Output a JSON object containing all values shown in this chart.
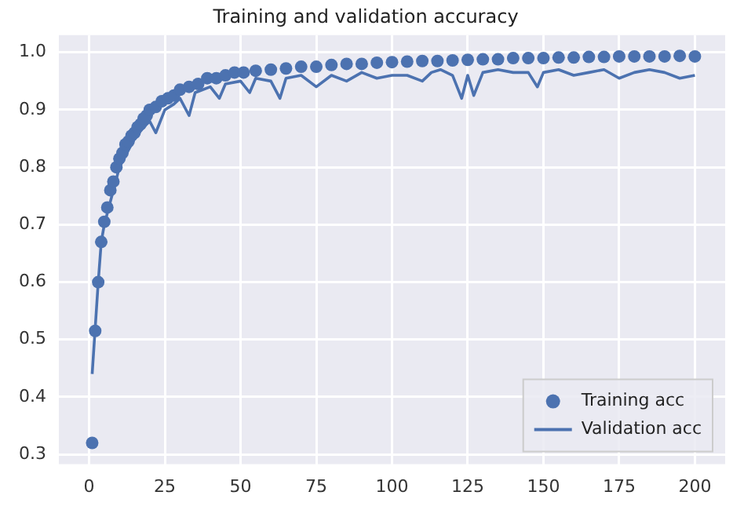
{
  "chart_data": {
    "type": "scatter",
    "title": "Training and validation accuracy",
    "xlim": [
      -10,
      210
    ],
    "ylim": [
      0.283,
      1.03
    ],
    "xticks": [
      0,
      25,
      50,
      75,
      100,
      125,
      150,
      175,
      200
    ],
    "yticks": [
      0.3,
      0.4,
      0.5,
      0.6,
      0.7,
      0.8,
      0.9,
      {
        "value": 1,
        "label": "1.0"
      }
    ],
    "grid": true,
    "legend": "bottom right",
    "series": [
      {
        "name": "Training acc",
        "marker": "circle",
        "color": "#4c72b0",
        "x": [
          1,
          2,
          3,
          4,
          5,
          6,
          7,
          8,
          9,
          10,
          11,
          12,
          13,
          14,
          15,
          16,
          17,
          18,
          19,
          20,
          22,
          24,
          26,
          28,
          30,
          33,
          36,
          39,
          42,
          45,
          48,
          51,
          55,
          60,
          65,
          70,
          75,
          80,
          85,
          90,
          95,
          100,
          105,
          110,
          115,
          120,
          125,
          130,
          135,
          140,
          145,
          150,
          155,
          160,
          165,
          170,
          175,
          180,
          185,
          190,
          195,
          200
        ],
        "values": [
          0.32,
          0.515,
          0.6,
          0.67,
          0.705,
          0.73,
          0.76,
          0.775,
          0.8,
          0.815,
          0.825,
          0.84,
          0.845,
          0.855,
          0.86,
          0.87,
          0.875,
          0.885,
          0.89,
          0.9,
          0.905,
          0.915,
          0.92,
          0.925,
          0.935,
          0.94,
          0.945,
          0.955,
          0.955,
          0.96,
          0.965,
          0.965,
          0.968,
          0.97,
          0.972,
          0.975,
          0.975,
          0.978,
          0.98,
          0.98,
          0.982,
          0.983,
          0.984,
          0.985,
          0.985,
          0.986,
          0.987,
          0.988,
          0.988,
          0.99,
          0.99,
          0.99,
          0.991,
          0.991,
          0.992,
          0.992,
          0.993,
          0.993,
          0.993,
          0.993,
          0.994,
          0.993
        ]
      },
      {
        "name": "Validation acc",
        "type": "line",
        "marker": "none",
        "color": "#4c72b0",
        "x": [
          1,
          2,
          3,
          4,
          5,
          6,
          8,
          10,
          12,
          15,
          18,
          20,
          22,
          25,
          28,
          30,
          33,
          35,
          40,
          43,
          45,
          50,
          53,
          55,
          60,
          63,
          65,
          70,
          75,
          80,
          85,
          90,
          95,
          100,
          105,
          110,
          113,
          116,
          120,
          123,
          125,
          127,
          130,
          135,
          140,
          145,
          148,
          150,
          155,
          160,
          165,
          170,
          175,
          180,
          185,
          190,
          195,
          200
        ],
        "values": [
          0.44,
          0.52,
          0.6,
          0.67,
          0.7,
          0.72,
          0.76,
          0.8,
          0.82,
          0.85,
          0.87,
          0.88,
          0.86,
          0.9,
          0.91,
          0.92,
          0.89,
          0.93,
          0.94,
          0.92,
          0.945,
          0.95,
          0.93,
          0.955,
          0.95,
          0.92,
          0.955,
          0.96,
          0.94,
          0.96,
          0.95,
          0.965,
          0.955,
          0.96,
          0.96,
          0.95,
          0.965,
          0.97,
          0.96,
          0.92,
          0.96,
          0.925,
          0.965,
          0.97,
          0.965,
          0.965,
          0.94,
          0.965,
          0.97,
          0.96,
          0.965,
          0.97,
          0.955,
          0.965,
          0.97,
          0.965,
          0.955,
          0.96
        ]
      }
    ]
  }
}
